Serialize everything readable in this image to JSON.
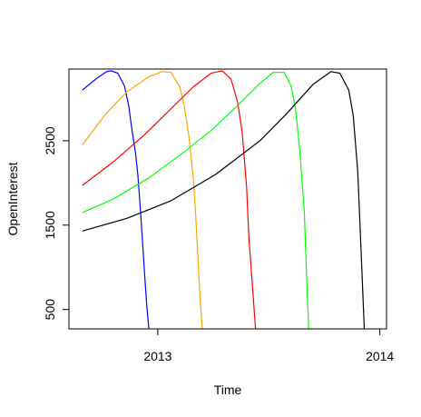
{
  "chart_data": {
    "type": "line",
    "title": "",
    "xlabel": "Time",
    "ylabel": "OpenInterest",
    "xlim": [
      2012.6,
      2014.03
    ],
    "ylim": [
      270,
      3350
    ],
    "x_ticks": [
      {
        "value": 2013,
        "label": "2013"
      },
      {
        "value": 2014,
        "label": "2014"
      }
    ],
    "y_ticks": [
      {
        "value": 500,
        "label": "500"
      },
      {
        "value": 1500,
        "label": "1500"
      },
      {
        "value": 2500,
        "label": "2500"
      }
    ],
    "grid": false,
    "legend": "none",
    "series": [
      {
        "color": "#0000ff",
        "x": [
          2012.66,
          2012.72,
          2012.77,
          2012.79,
          2012.82,
          2012.85,
          2012.87,
          2012.88,
          2012.9,
          2012.91,
          2012.92,
          2012.93,
          2012.94,
          2012.95,
          2012.96
        ],
        "y": [
          3100,
          3230,
          3320,
          3330,
          3300,
          3150,
          2900,
          2700,
          2350,
          2100,
          1750,
          1350,
          950,
          550,
          270
        ]
      },
      {
        "color": "#ffa500",
        "x": [
          2012.66,
          2012.76,
          2012.86,
          2012.96,
          2013.02,
          2013.06,
          2013.1,
          2013.12,
          2013.14,
          2013.16,
          2013.17,
          2013.18,
          2013.19,
          2013.2
        ],
        "y": [
          2450,
          2800,
          3080,
          3260,
          3320,
          3310,
          3130,
          2900,
          2550,
          2050,
          1650,
          1150,
          650,
          270
        ]
      },
      {
        "color": "#ff0000",
        "x": [
          2012.66,
          2012.8,
          2012.94,
          2013.06,
          2013.16,
          2013.24,
          2013.29,
          2013.33,
          2013.36,
          2013.38,
          2013.4,
          2013.41,
          2013.43,
          2013.44
        ],
        "y": [
          1970,
          2250,
          2570,
          2880,
          3140,
          3300,
          3330,
          3230,
          2950,
          2600,
          1950,
          1350,
          650,
          270
        ]
      },
      {
        "color": "#00ff00",
        "x": [
          2012.66,
          2012.8,
          2012.96,
          2013.1,
          2013.24,
          2013.36,
          2013.46,
          2013.52,
          2013.57,
          2013.6,
          2013.62,
          2013.64,
          2013.66,
          2013.67,
          2013.68
        ],
        "y": [
          1650,
          1810,
          2060,
          2330,
          2620,
          2920,
          3180,
          3310,
          3310,
          3150,
          2880,
          2380,
          1650,
          900,
          270
        ]
      },
      {
        "color": "#000000",
        "x": [
          2012.66,
          2012.86,
          2013.06,
          2013.26,
          2013.46,
          2013.58,
          2013.7,
          2013.78,
          2013.82,
          2013.86,
          2013.88,
          2013.9,
          2013.91,
          2013.92,
          2013.93
        ],
        "y": [
          1430,
          1580,
          1790,
          2100,
          2500,
          2820,
          3170,
          3320,
          3300,
          3100,
          2800,
          2150,
          1550,
          900,
          270
        ]
      }
    ]
  }
}
